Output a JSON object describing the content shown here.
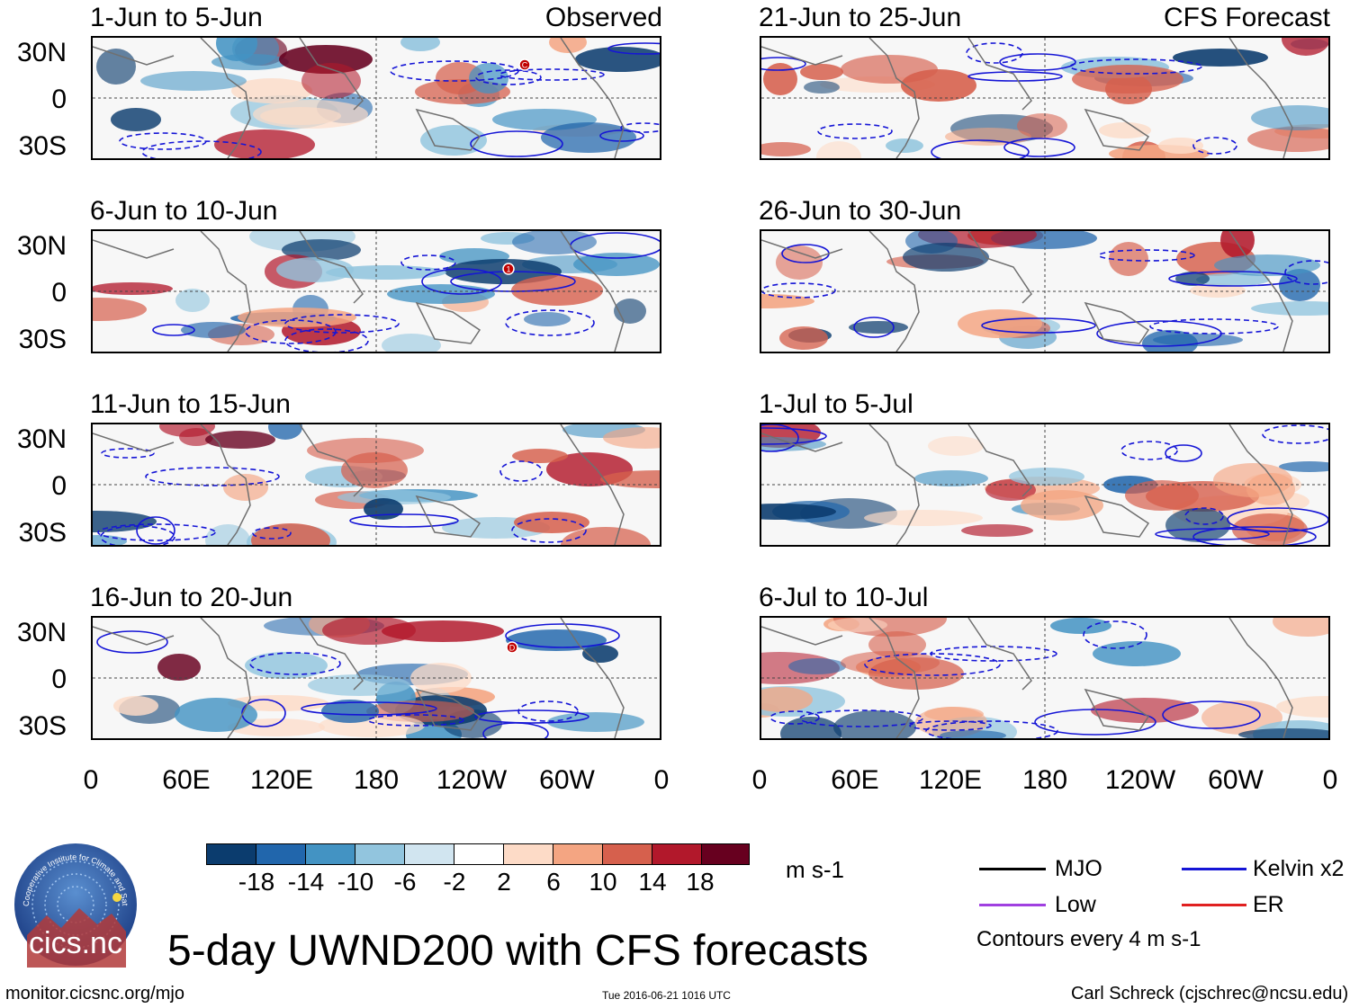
{
  "panels_left": [
    {
      "title": "1-Jun to 5-Jun",
      "label": "Observed"
    },
    {
      "title": "6-Jun to 10-Jun",
      "label": ""
    },
    {
      "title": "11-Jun to 15-Jun",
      "label": ""
    },
    {
      "title": "16-Jun to 20-Jun",
      "label": ""
    }
  ],
  "panels_right": [
    {
      "title": "21-Jun to 25-Jun",
      "label": "CFS Forecast"
    },
    {
      "title": "26-Jun to 30-Jun",
      "label": ""
    },
    {
      "title": "1-Jul to 5-Jul",
      "label": ""
    },
    {
      "title": "6-Jul to 10-Jul",
      "label": ""
    }
  ],
  "lat_labels": [
    "30N",
    "0",
    "30S"
  ],
  "lon_labels": [
    "0",
    "60E",
    "120E",
    "180",
    "120W",
    "60W",
    "0"
  ],
  "colorbar": {
    "labels": [
      "-18",
      "-14",
      "-10",
      "-6",
      "-2",
      "2",
      "6",
      "10",
      "14",
      "18"
    ],
    "colors": [
      "#0b3c6e",
      "#2166ac",
      "#4393c3",
      "#92c5de",
      "#d1e5f0",
      "#ffffff",
      "#fddbc7",
      "#f4a582",
      "#d6604d",
      "#b2182b",
      "#67001f"
    ],
    "unit": "m s-1"
  },
  "legend": {
    "items": [
      {
        "label": "MJO",
        "color": "#000000"
      },
      {
        "label": "Kelvin x2",
        "color": "#1515d6"
      },
      {
        "label": "Low",
        "color": "#a040e0"
      },
      {
        "label": "ER",
        "color": "#e02020"
      }
    ],
    "note": "Contours every 4 m s-1"
  },
  "title": "5-day UWND200 with CFS forecasts",
  "footer": {
    "left": "monitor.cicsnc.org/mjo",
    "center": "Tue 2016-06-21 1016 UTC",
    "right": "Carl Schreck (cjschrec@ncsu.edu)"
  },
  "logo": {
    "text": "cics.nc",
    "ring_text": "Cooperative Institute for Climate and Satellites"
  },
  "storm_markers": [
    "C",
    "1",
    "D"
  ]
}
